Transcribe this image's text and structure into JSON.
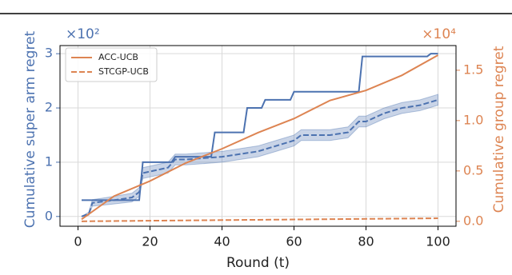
{
  "chart_data": {
    "type": "line",
    "xlabel": "Round (t)",
    "ylabel": "Cumulative super arm regret",
    "y2label": "Cumulative group regret",
    "y_multiplier": "×10²",
    "y2_multiplier": "×10⁴",
    "xlim": [
      -5,
      105
    ],
    "xticks": [
      0,
      20,
      40,
      60,
      80,
      100
    ],
    "ylim": [
      -0.18,
      3.15
    ],
    "yticks": [
      0,
      1,
      2,
      3
    ],
    "y2lim": [
      -0.049,
      1.745
    ],
    "y2ticks": [
      {
        "value": 0,
        "label": "0.0"
      },
      {
        "value": 0.5,
        "label": "0.5"
      },
      {
        "value": 1,
        "label": "1.0"
      },
      {
        "value": 1.5,
        "label": "1.5"
      }
    ],
    "grid": true,
    "legend": "upper left",
    "y_color": "#4c72b0",
    "y2_color": "#dd8452",
    "series": [
      {
        "name": "ACC-UCB",
        "color": "#4c72b0",
        "dash": false,
        "x": [
          1,
          17,
          18,
          26,
          27,
          37,
          38,
          46,
          47,
          51,
          52,
          59,
          60,
          78,
          79,
          97,
          98,
          100
        ],
        "values": [
          0.3,
          0.3,
          1.0,
          1.0,
          1.1,
          1.1,
          1.55,
          1.55,
          2.0,
          2.0,
          2.15,
          2.15,
          2.3,
          2.3,
          2.95,
          2.95,
          3.0,
          3.0
        ]
      },
      {
        "name": "STCGP-UCB",
        "color": "#4c72b0",
        "dash": true,
        "x": [
          1,
          3,
          4,
          10,
          15,
          17,
          18,
          25,
          27,
          30,
          40,
          50,
          55,
          60,
          62,
          70,
          75,
          78,
          80,
          85,
          90,
          95,
          100
        ],
        "values": [
          0,
          0.05,
          0.25,
          0.3,
          0.35,
          0.45,
          0.8,
          0.9,
          1.05,
          1.05,
          1.1,
          1.2,
          1.3,
          1.4,
          1.5,
          1.5,
          1.55,
          1.75,
          1.75,
          1.9,
          2.0,
          2.05,
          2.15
        ],
        "errors": [
          0,
          0.03,
          0.06,
          0.07,
          0.08,
          0.08,
          0.1,
          0.1,
          0.1,
          0.1,
          0.1,
          0.1,
          0.1,
          0.1,
          0.1,
          0.1,
          0.1,
          0.1,
          0.1,
          0.1,
          0.1,
          0.1,
          0.1
        ]
      },
      {
        "name": "ACC-UCB",
        "color": "#dd8452",
        "dash": false,
        "axis": "y2",
        "x": [
          1,
          10,
          20,
          30,
          40,
          50,
          60,
          70,
          80,
          90,
          100
        ],
        "values": [
          0.02,
          0.25,
          0.4,
          0.58,
          0.72,
          0.88,
          1.02,
          1.2,
          1.3,
          1.45,
          1.65
        ]
      },
      {
        "name": "STCGP-UCB",
        "color": "#dd8452",
        "dash": true,
        "axis": "y2",
        "x": [
          1,
          50,
          100
        ],
        "values": [
          0,
          0.015,
          0.03
        ]
      }
    ]
  }
}
